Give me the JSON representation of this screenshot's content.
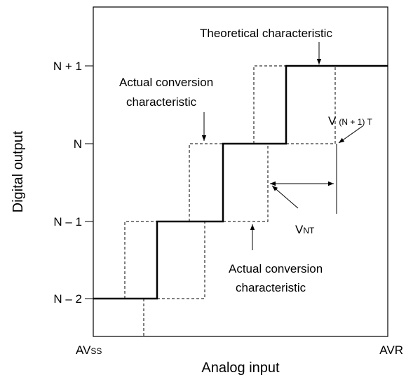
{
  "y_labels": [
    "N + 1",
    "N",
    "N – 1",
    "N – 2"
  ],
  "y_axis_title": "Digital output",
  "x_axis_title": "Analog input",
  "x_start": {
    "base": "AV",
    "sub": "SS"
  },
  "x_end": "AVR",
  "annotations": {
    "theoretical": "Theoretical characteristic",
    "actual_top": [
      "Actual conversion",
      "characteristic"
    ],
    "actual_bottom": [
      "Actual conversion",
      "characteristic"
    ],
    "v_n1t": {
      "base": "V",
      "sub": "(N + 1) T"
    },
    "v_nt": {
      "base": "V",
      "sub": "NT"
    }
  }
}
